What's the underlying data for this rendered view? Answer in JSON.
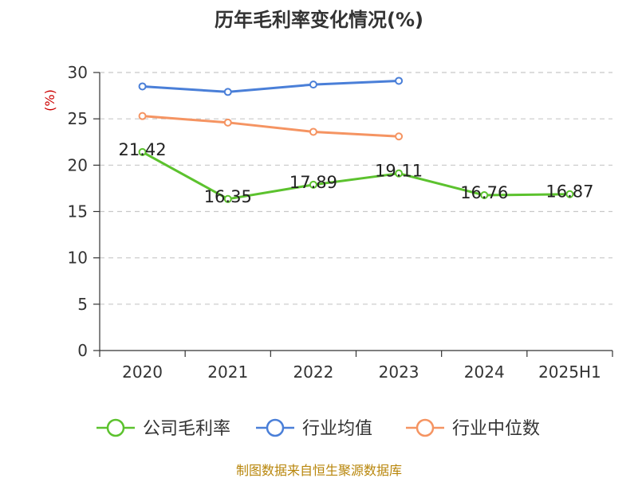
{
  "chart_data": {
    "type": "line",
    "title": "历年毛利率变化情况(%)",
    "ylabel": "(%)",
    "xlabel": "",
    "categories": [
      "2020",
      "2021",
      "2022",
      "2023",
      "2024",
      "2025H1"
    ],
    "ylim": [
      0,
      30
    ],
    "yticks": [
      0,
      5,
      10,
      15,
      20,
      25,
      30
    ],
    "grid": "horizontal-dashed",
    "legend_position": "bottom",
    "series": [
      {
        "name": "公司毛利率",
        "color": "#5cc22e",
        "values": [
          21.42,
          16.35,
          17.89,
          19.11,
          16.76,
          16.87
        ],
        "labels": [
          "21.42",
          "16.35",
          "17.89",
          "19.11",
          "16.76",
          "16.87"
        ]
      },
      {
        "name": "行业均值",
        "color": "#4a7fd8",
        "values": [
          28.5,
          27.9,
          28.7,
          29.1,
          null,
          null
        ]
      },
      {
        "name": "行业中位数",
        "color": "#f59462",
        "values": [
          25.3,
          24.6,
          23.6,
          23.1,
          null,
          null
        ]
      }
    ]
  },
  "source_text": "制图数据来自恒生聚源数据库"
}
